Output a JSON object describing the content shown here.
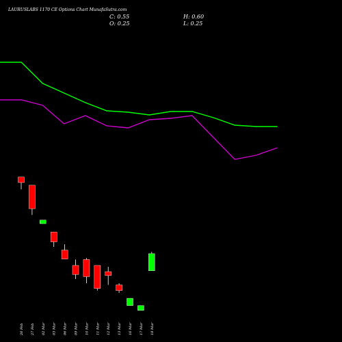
{
  "header": {
    "title": "LAURUSLABS 1170 CE Options  Chart MunafaSutra.com",
    "open_label": "O: 0.25",
    "high_label": "H: 0.60",
    "low_label": "L: 0.25",
    "close_label": "C: 0.55"
  },
  "chart_data": {
    "type": "candlestick",
    "title": "LAURUSLABS 1170 CE Options  Chart MunafaSutra.com",
    "categories": [
      "26 Feb",
      "27 Feb",
      "02 Mar",
      "03 Mar",
      "06 Mar",
      "09 Mar",
      "10 Mar",
      "11 Mar",
      "12 Mar",
      "13 Mar",
      "16 Mar",
      "17 Mar",
      "18 Mar"
    ],
    "candles": [
      {
        "date": "26 Feb",
        "open": 19.0,
        "high": 19.0,
        "low": 10.8,
        "close": 14.7
      },
      {
        "date": "27 Feb",
        "open": 13.0,
        "high": 13.0,
        "low": 3.3,
        "close": 4.4
      },
      {
        "date": "02 Mar",
        "open": 2.2,
        "high": 2.6,
        "low": 2.2,
        "close": 2.6
      },
      {
        "date": "03 Mar",
        "open": 1.5,
        "high": 1.5,
        "low": 0.75,
        "close": 0.95
      },
      {
        "date": "06 Mar",
        "open": 0.65,
        "high": 0.85,
        "low": 0.43,
        "close": 0.43
      },
      {
        "date": "09 Mar",
        "open": 0.32,
        "high": 0.42,
        "low": 0.17,
        "close": 0.21
      },
      {
        "date": "10 Mar",
        "open": 0.42,
        "high": 0.45,
        "low": 0.14,
        "close": 0.19
      },
      {
        "date": "11 Mar",
        "open": 0.32,
        "high": 0.32,
        "low": 0.1,
        "close": 0.11
      },
      {
        "date": "12 Mar",
        "open": 0.24,
        "high": 0.3,
        "low": 0.13,
        "close": 0.2
      },
      {
        "date": "13 Mar",
        "open": 0.13,
        "high": 0.14,
        "low": 0.09,
        "close": 0.1
      },
      {
        "date": "16 Mar",
        "open": 0.05,
        "high": 0.07,
        "low": 0.05,
        "close": 0.07
      },
      {
        "date": "17 Mar",
        "open": 0.04,
        "high": 0.05,
        "low": 0.04,
        "close": 0.05
      },
      {
        "date": "18 Mar",
        "open": 0.25,
        "high": 0.6,
        "low": 0.25,
        "close": 0.55
      }
    ],
    "series": [
      {
        "color": "#00ff00",
        "values": [
          null,
          null,
          null,
          null,
          null,
          null,
          null,
          null,
          null,
          null,
          null,
          null,
          null
        ]
      },
      {
        "color": "#ff00ff",
        "values": [
          null,
          null,
          null,
          null,
          null,
          null,
          null,
          null,
          null,
          null,
          null,
          null,
          null
        ]
      }
    ],
    "ma_lines": {
      "green": [
        91,
        91,
        122,
        136,
        150,
        162,
        164,
        168,
        163,
        163,
        172,
        183,
        185,
        185
      ],
      "magenta": [
        146,
        146,
        154,
        181,
        169,
        184,
        187,
        175,
        173,
        169,
        201,
        233,
        227,
        216
      ]
    },
    "colors": {
      "up": "#00ff00",
      "down": "#ff0000",
      "background": "#000000",
      "text": "#ffffff"
    },
    "grid": false,
    "legend": "none"
  }
}
